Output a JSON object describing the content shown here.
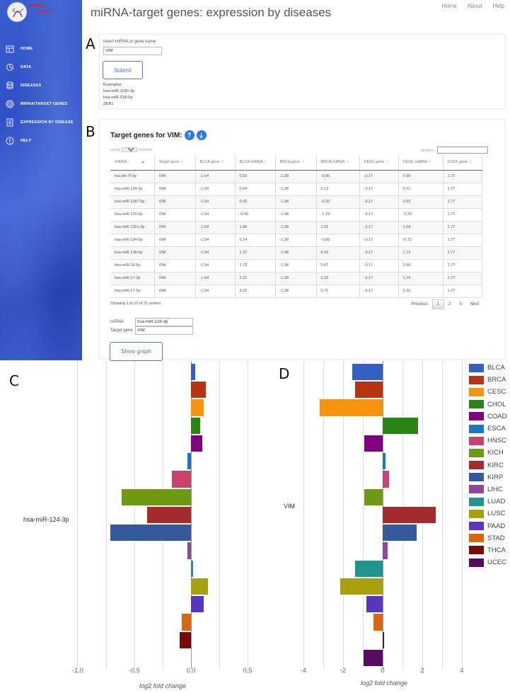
{
  "header": {
    "title": "miRNA-target genes: expression by diseases",
    "logo_text": [
      "miRNA",
      "cancer"
    ],
    "links": [
      "Home",
      "About",
      "Help"
    ]
  },
  "sidebar": {
    "items": [
      {
        "label": "HOME",
        "icon": "home-icon"
      },
      {
        "label": "DATA",
        "icon": "pie-chart-icon"
      },
      {
        "label": "DISEASES",
        "icon": "database-icon"
      },
      {
        "label": "MIRNA/TARGET GENES",
        "icon": "target-icon"
      },
      {
        "label": "EXPRESSION BY DISEASE",
        "icon": "document-icon"
      },
      {
        "label": "HELP",
        "icon": "info-icon"
      }
    ]
  },
  "panel_labels": {
    "a": "A",
    "b": "B",
    "c": "C",
    "d": "D"
  },
  "panel_a": {
    "input_label": "Insert miRNA or gene name:",
    "input_value": "VIM",
    "submit_label": "Submit",
    "examples_label": "Examples:",
    "examples": [
      "hsa-miR-1180-3p",
      "hsa-miR-218-5p",
      "ZEB1"
    ]
  },
  "panel_b": {
    "title": "Target genes for VIM:",
    "help_icon": "?",
    "download_icon": "⤓",
    "show_label": "SHOW",
    "entries_value": "10",
    "entries_label": "ENTRIES",
    "search_label": "SEARCH:",
    "search_value": "",
    "columns": [
      "miRNA",
      "Target gene",
      "BLCA gene",
      "BLCA miRNA",
      "BRCA gene",
      "BRCA miRNA",
      "CESC gene",
      "CESC miRNA",
      "CHOL gene"
    ],
    "rows": [
      [
        "hsa-let-7f-5p",
        "VIM",
        "-1.54",
        "0.53",
        "-1.38",
        "-0.05",
        "-3.17",
        "0.99",
        "1.77"
      ],
      [
        "hsa-miR-124-3p",
        "VIM",
        "-1.54",
        "0.04",
        "-1.38",
        "0.13",
        "-3.17",
        "0.11",
        "1.77"
      ],
      [
        "hsa-miR-1287-5p",
        "VIM",
        "-1.54",
        "0.65",
        "-1.38",
        "-0.32",
        "-3.17",
        "0.03",
        "1.77"
      ],
      [
        "hsa-miR-129-5p",
        "VIM",
        "-1.54",
        "-0.40",
        "-1.38",
        "-1.19",
        "-3.17",
        "-2.20",
        "1.77"
      ],
      [
        "hsa-miR-1301-3p",
        "VIM",
        "-1.54",
        "1.89",
        "-1.38",
        "1.61",
        "-3.17",
        "1.64",
        "1.77"
      ],
      [
        "hsa-miR-134-5p",
        "VIM",
        "-1.54",
        "0.14",
        "-1.38",
        "-0.89",
        "-3.17",
        "-0.72",
        "1.77"
      ],
      [
        "hsa-miR-138-5p",
        "VIM",
        "-1.54",
        "1.37",
        "-1.38",
        "0.16",
        "-3.17",
        "1.13",
        "1.77"
      ],
      [
        "hsa-miR-16-5p",
        "VIM",
        "-1.54",
        "1.72",
        "-1.38",
        "0.67",
        "-3.17",
        "2.90",
        "1.77"
      ],
      [
        "hsa-miR-17-3p",
        "VIM",
        "-1.54",
        "2.22",
        "-1.38",
        "0.33",
        "-3.17",
        "1.24",
        "1.77"
      ],
      [
        "hsa-miR-17-5p",
        "VIM",
        "-1.54",
        "3.22",
        "-1.38",
        "0.76",
        "-3.17",
        "2.31",
        "1.77"
      ]
    ],
    "info": "Showing 1 to 10 of 21 entries",
    "pagination": {
      "previous": "Previous",
      "pages": [
        "1",
        "2",
        "3"
      ],
      "active": "1",
      "next": "Next"
    },
    "form": {
      "mirna_label": "miRNA",
      "mirna_value": "hsa-miR-124-3p",
      "gene_label": "Target gene",
      "gene_value": "VIM"
    },
    "show_graph_label": "Show graph"
  },
  "legend": {
    "items": [
      {
        "name": "BLCA",
        "color": "#3461c1"
      },
      {
        "name": "BRCA",
        "color": "#b83310"
      },
      {
        "name": "CESC",
        "color": "#f7930e"
      },
      {
        "name": "CHOL",
        "color": "#2a8413"
      },
      {
        "name": "COAD",
        "color": "#800080"
      },
      {
        "name": "ESCA",
        "color": "#1a78c0"
      },
      {
        "name": "HNSC",
        "color": "#c8446d"
      },
      {
        "name": "KICH",
        "color": "#6d9a12"
      },
      {
        "name": "KIRC",
        "color": "#a42c2c"
      },
      {
        "name": "KIRP",
        "color": "#345a9c"
      },
      {
        "name": "LIHC",
        "color": "#93449c"
      },
      {
        "name": "LUAD",
        "color": "#1e958e"
      },
      {
        "name": "LUSC",
        "color": "#a8a00c"
      },
      {
        "name": "PAAD",
        "color": "#5a36c0"
      },
      {
        "name": "STAD",
        "color": "#d8670e"
      },
      {
        "name": "THCA",
        "color": "#7a0808"
      },
      {
        "name": "UCEC",
        "color": "#560a60"
      }
    ]
  },
  "chart_data": [
    {
      "type": "bar",
      "orientation": "horizontal",
      "title": "",
      "category": "hsa-miR-124-3p",
      "xlabel": "log2 fold change",
      "ylabel": "",
      "xlim": [
        -1.0,
        0.5
      ],
      "xticks": [
        "-1.0",
        "-0.5",
        "0.0",
        "0.5"
      ],
      "grid": true,
      "legend_position": "right",
      "series": [
        {
          "name": "BLCA",
          "values": [
            0.04
          ]
        },
        {
          "name": "BRCA",
          "values": [
            0.13
          ]
        },
        {
          "name": "CESC",
          "values": [
            0.11
          ]
        },
        {
          "name": "CHOL",
          "values": [
            0.08
          ]
        },
        {
          "name": "COAD",
          "values": [
            0.1
          ]
        },
        {
          "name": "ESCA",
          "values": [
            -0.03
          ]
        },
        {
          "name": "HNSC",
          "values": [
            -0.17
          ]
        },
        {
          "name": "KICH",
          "values": [
            -0.61
          ]
        },
        {
          "name": "KIRC",
          "values": [
            -0.39
          ]
        },
        {
          "name": "KIRP",
          "values": [
            -0.71
          ]
        },
        {
          "name": "LIHC",
          "values": [
            -0.03
          ]
        },
        {
          "name": "LUAD",
          "values": [
            0.02
          ]
        },
        {
          "name": "LUSC",
          "values": [
            0.15
          ]
        },
        {
          "name": "PAAD",
          "values": [
            0.11
          ]
        },
        {
          "name": "STAD",
          "values": [
            -0.08
          ]
        },
        {
          "name": "THCA",
          "values": [
            -0.1
          ]
        },
        {
          "name": "UCEC",
          "values": [
            0.0
          ]
        }
      ]
    },
    {
      "type": "bar",
      "orientation": "horizontal",
      "title": "",
      "category": "VIM",
      "xlabel": "log2 fold change",
      "ylabel": "",
      "xlim": [
        -5,
        5
      ],
      "xticks": [
        "-4",
        "-2",
        "0",
        "2",
        "4"
      ],
      "grid": true,
      "legend_position": "right",
      "series": [
        {
          "name": "BLCA",
          "values": [
            -1.54
          ]
        },
        {
          "name": "BRCA",
          "values": [
            -1.38
          ]
        },
        {
          "name": "CESC",
          "values": [
            -3.17
          ]
        },
        {
          "name": "CHOL",
          "values": [
            1.77
          ]
        },
        {
          "name": "COAD",
          "values": [
            -0.93
          ]
        },
        {
          "name": "ESCA",
          "values": [
            0.14
          ]
        },
        {
          "name": "HNSC",
          "values": [
            0.32
          ]
        },
        {
          "name": "KICH",
          "values": [
            -0.94
          ]
        },
        {
          "name": "KIRC",
          "values": [
            2.68
          ]
        },
        {
          "name": "KIRP",
          "values": [
            1.72
          ]
        },
        {
          "name": "LIHC",
          "values": [
            0.25
          ]
        },
        {
          "name": "LUAD",
          "values": [
            -1.38
          ]
        },
        {
          "name": "LUSC",
          "values": [
            -2.16
          ]
        },
        {
          "name": "PAAD",
          "values": [
            -0.82
          ]
        },
        {
          "name": "STAD",
          "values": [
            -0.46
          ]
        },
        {
          "name": "THCA",
          "values": [
            0.06
          ]
        },
        {
          "name": "UCEC",
          "values": [
            -0.95
          ]
        }
      ]
    }
  ]
}
